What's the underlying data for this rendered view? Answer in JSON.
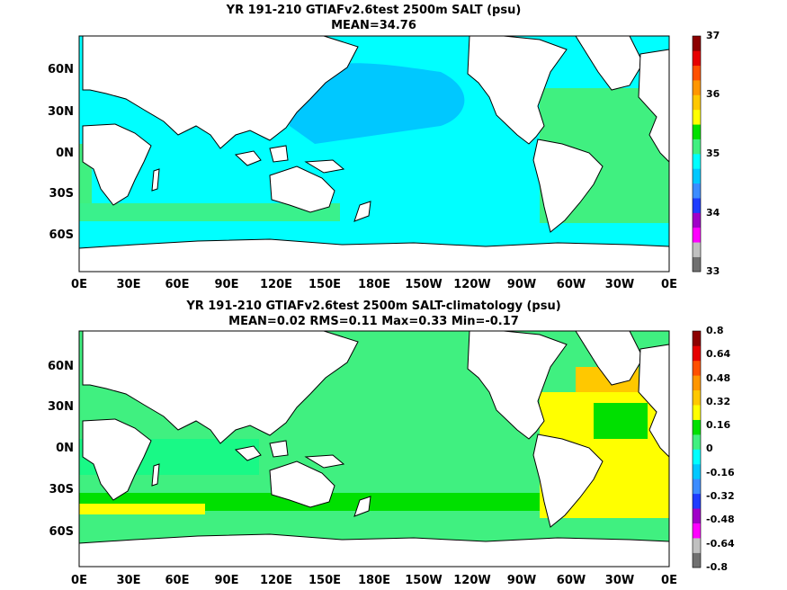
{
  "panels": [
    {
      "title_line1": "YR 191-210 GTIAFv2.6test 2500m SALT (psu)",
      "title_line2": "MEAN=34.76",
      "colorbar": {
        "colors": [
          "#707070",
          "#c0c0c0",
          "#ff00ff",
          "#a000c8",
          "#1e3cff",
          "#3c8cff",
          "#00c8ff",
          "#00ffff",
          "#40f080",
          "#00e000",
          "#ffff00",
          "#ffc800",
          "#ff9600",
          "#ff5000",
          "#e60000",
          "#8c0000"
        ],
        "labels": [
          "33",
          "34",
          "35",
          "36",
          "37"
        ]
      }
    },
    {
      "title_line1": "YR 191-210 GTIAFv2.6test 2500m SALT-climatology (psu)",
      "title_line2": "MEAN=0.02   RMS=0.11   Max=0.33   Min=-0.17",
      "colorbar": {
        "colors": [
          "#707070",
          "#c0c0c0",
          "#ff00ff",
          "#a000c8",
          "#1e3cff",
          "#3c8cff",
          "#00c8ff",
          "#00ffff",
          "#40f080",
          "#00e000",
          "#ffff00",
          "#ffc800",
          "#ff9600",
          "#ff5000",
          "#e60000",
          "#8c0000"
        ],
        "labels": [
          "0.8",
          "0.64",
          "0.48",
          "0.32",
          "0.16",
          "0",
          "-0.16",
          "-0.32",
          "-0.48",
          "-0.64",
          "-0.8"
        ]
      }
    }
  ],
  "lat_labels": [
    "60N",
    "30N",
    "0N",
    "30S",
    "60S"
  ],
  "lon_labels": [
    "0E",
    "30E",
    "60E",
    "90E",
    "120E",
    "150E",
    "180E",
    "150W",
    "120W",
    "90W",
    "60W",
    "30W",
    "0E"
  ]
}
